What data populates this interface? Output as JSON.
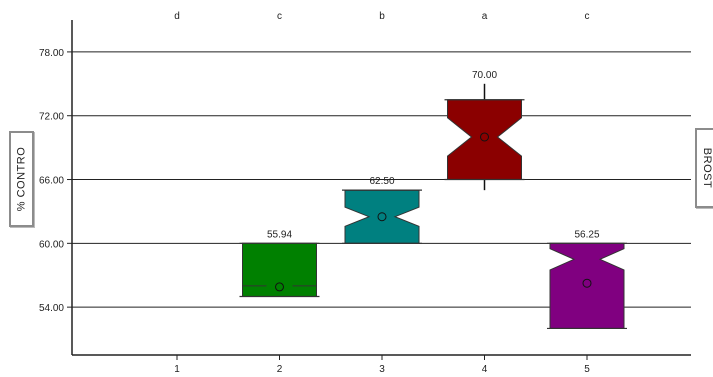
{
  "chart_data": {
    "type": "box",
    "title": "",
    "ylabel": "% CONTRO",
    "y2label": "BROST",
    "ylim": [
      49.5,
      81.0
    ],
    "yticks": [
      54.0,
      60.0,
      66.0,
      72.0,
      78.0
    ],
    "ytick_labels": [
      "54.00",
      "60.00",
      "66.00",
      "72.00",
      "78.00"
    ],
    "grid": true,
    "categories": [
      "1",
      "2",
      "3",
      "4",
      "5"
    ],
    "group_letters": [
      "d",
      "c",
      "b",
      "a",
      "c"
    ],
    "boxes": [
      {
        "category": "1",
        "letter": "d",
        "label": "",
        "color": "",
        "empty": true
      },
      {
        "category": "2",
        "letter": "c",
        "label": "55.94",
        "color": "#008000",
        "q1": 55.0,
        "median": 56.0,
        "q3": 60.0,
        "notch_low": 56.0,
        "notch_high": 56.0,
        "whisker_low": 55.0,
        "whisker_high": 60.0,
        "mean": 55.9
      },
      {
        "category": "3",
        "letter": "b",
        "label": "62.50",
        "color": "#008080",
        "q1": 60.0,
        "median": 62.5,
        "q3": 65.0,
        "notch_low": 61.6,
        "notch_high": 63.4,
        "whisker_low": 60.0,
        "whisker_high": 65.0,
        "mean": 62.5
      },
      {
        "category": "4",
        "letter": "a",
        "label": "70.00",
        "color": "#8B0000",
        "q1": 66.0,
        "median": 70.0,
        "q3": 73.5,
        "notch_low": 68.2,
        "notch_high": 71.8,
        "whisker_low": 65.0,
        "whisker_high": 75.0,
        "mean": 70.0
      },
      {
        "category": "5",
        "letter": "c",
        "label": "56.25",
        "color": "#800080",
        "q1": 52.0,
        "median": 58.5,
        "q3": 60.0,
        "notch_low": 57.5,
        "notch_high": 59.5,
        "whisker_low": 52.0,
        "whisker_high": 60.0,
        "mean": 56.25
      }
    ]
  }
}
